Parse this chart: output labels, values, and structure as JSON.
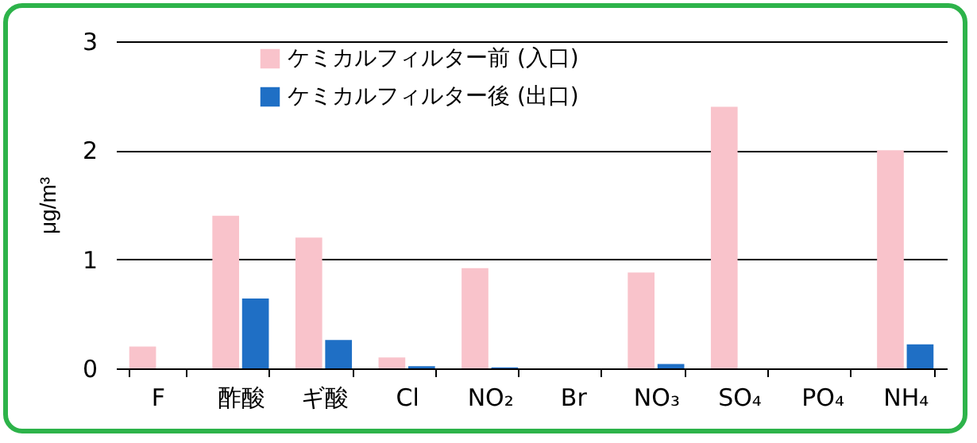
{
  "chart_data": {
    "type": "bar",
    "ylabel": "μg/m³",
    "categories": [
      "F",
      "酢酸",
      "ギ酸",
      "Cl",
      "NO₂",
      "Br",
      "NO₃",
      "SO₄",
      "PO₄",
      "NH₄"
    ],
    "series": [
      {
        "name": "ケミカルフィルター前 (入口)",
        "color": "#f9c3cb",
        "values": [
          0.2,
          1.4,
          1.2,
          0.1,
          0.92,
          null,
          0.88,
          2.4,
          null,
          2.0
        ]
      },
      {
        "name": "ケミカルフィルター後 (出口)",
        "color": "#1f6fc5",
        "values": [
          null,
          0.64,
          0.26,
          0.02,
          0.01,
          null,
          0.04,
          null,
          null,
          0.22
        ]
      }
    ],
    "ylim": [
      0,
      3
    ],
    "yticks": [
      0,
      1,
      2,
      3
    ],
    "grid": "y",
    "legend": "top left"
  }
}
